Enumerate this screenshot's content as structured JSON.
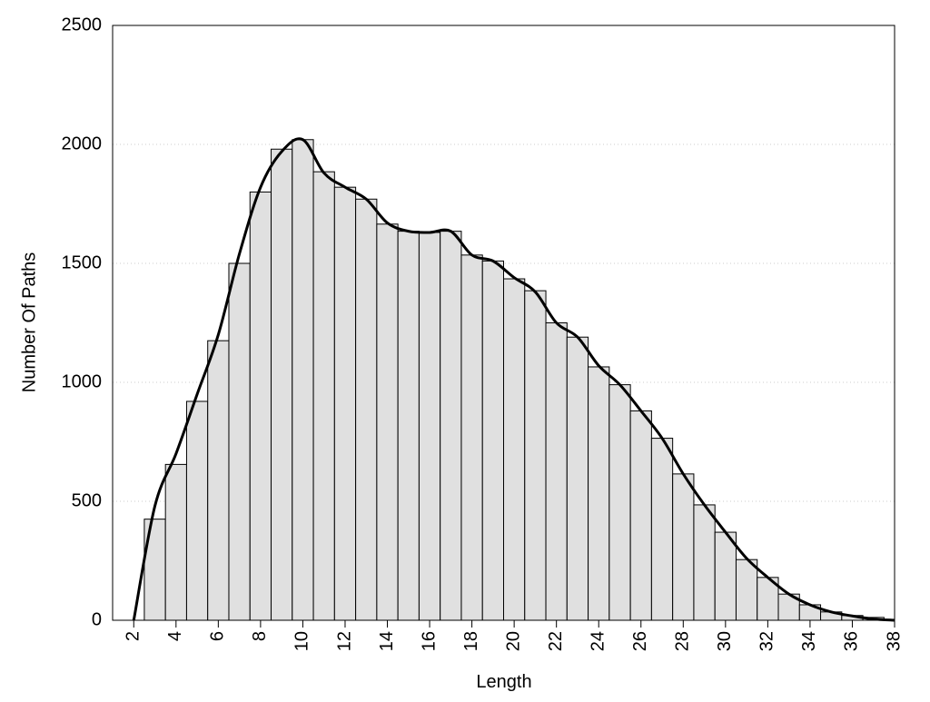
{
  "chart_data": {
    "type": "histogram",
    "xlabel": "Length",
    "ylabel": "Number Of Paths",
    "bins": [
      2.5,
      3.5,
      4.5,
      5.5,
      6.5,
      7.5,
      8.5,
      9.5,
      10.5,
      11.5,
      12.5,
      13.5,
      14.5,
      15.5,
      16.5,
      17.5,
      18.5,
      19.5,
      20.5,
      21.5,
      22.5,
      23.5,
      24.5,
      25.5,
      26.5,
      27.5,
      28.5,
      29.5,
      30.5,
      31.5,
      32.5,
      33.5,
      34.5,
      35.5,
      36.5,
      37.5
    ],
    "values": [
      425,
      655,
      920,
      1175,
      1500,
      1800,
      1980,
      2020,
      1885,
      1820,
      1770,
      1665,
      1635,
      1630,
      1635,
      1535,
      1510,
      1435,
      1385,
      1250,
      1190,
      1065,
      990,
      880,
      765,
      615,
      485,
      370,
      255,
      180,
      110,
      65,
      35,
      20,
      12
    ],
    "color": "#e0e0e0",
    "curve": {
      "color": "#000000",
      "x": [
        2,
        3,
        4,
        5,
        6,
        7,
        8,
        9,
        10,
        11,
        12,
        13,
        14,
        15,
        16,
        17,
        18,
        19,
        20,
        21,
        22,
        23,
        24,
        25,
        26,
        27,
        28,
        29,
        30,
        31,
        32,
        33,
        34,
        35,
        36,
        37,
        38
      ],
      "values": [
        0,
        480,
        700,
        950,
        1200,
        1540,
        1820,
        1970,
        2020,
        1880,
        1820,
        1770,
        1670,
        1635,
        1630,
        1635,
        1535,
        1510,
        1440,
        1380,
        1250,
        1190,
        1070,
        990,
        880,
        765,
        615,
        485,
        370,
        260,
        180,
        110,
        65,
        35,
        18,
        5,
        0
      ]
    },
    "xlim": [
      1,
      38
    ],
    "xticks": [
      2,
      4,
      6,
      8,
      10,
      12,
      14,
      16,
      18,
      20,
      22,
      24,
      26,
      28,
      30,
      32,
      34,
      36,
      38
    ],
    "ylim": [
      0,
      2500
    ],
    "yticks": [
      0,
      500,
      1000,
      1500,
      2000,
      2500
    ],
    "grid": true
  }
}
